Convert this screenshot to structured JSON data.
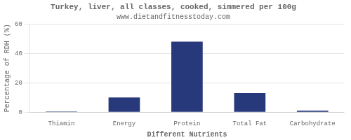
{
  "chart_data": {
    "type": "bar",
    "title": "Turkey, liver, all classes, cooked, simmered per 100g",
    "subtitle": "www.dietandfitnesstoday.com",
    "categories": [
      "Thiamin",
      "Energy",
      "Protein",
      "Total Fat",
      "Carbohydrate"
    ],
    "values": [
      0.5,
      10,
      48,
      13,
      1
    ],
    "color": "#27397a",
    "xlabel": "Different Nutrients",
    "ylabel": "Percentage of RDH (%)",
    "ylim": [
      0,
      60
    ],
    "yticks": [
      0,
      20,
      40,
      60
    ],
    "grid": true
  }
}
